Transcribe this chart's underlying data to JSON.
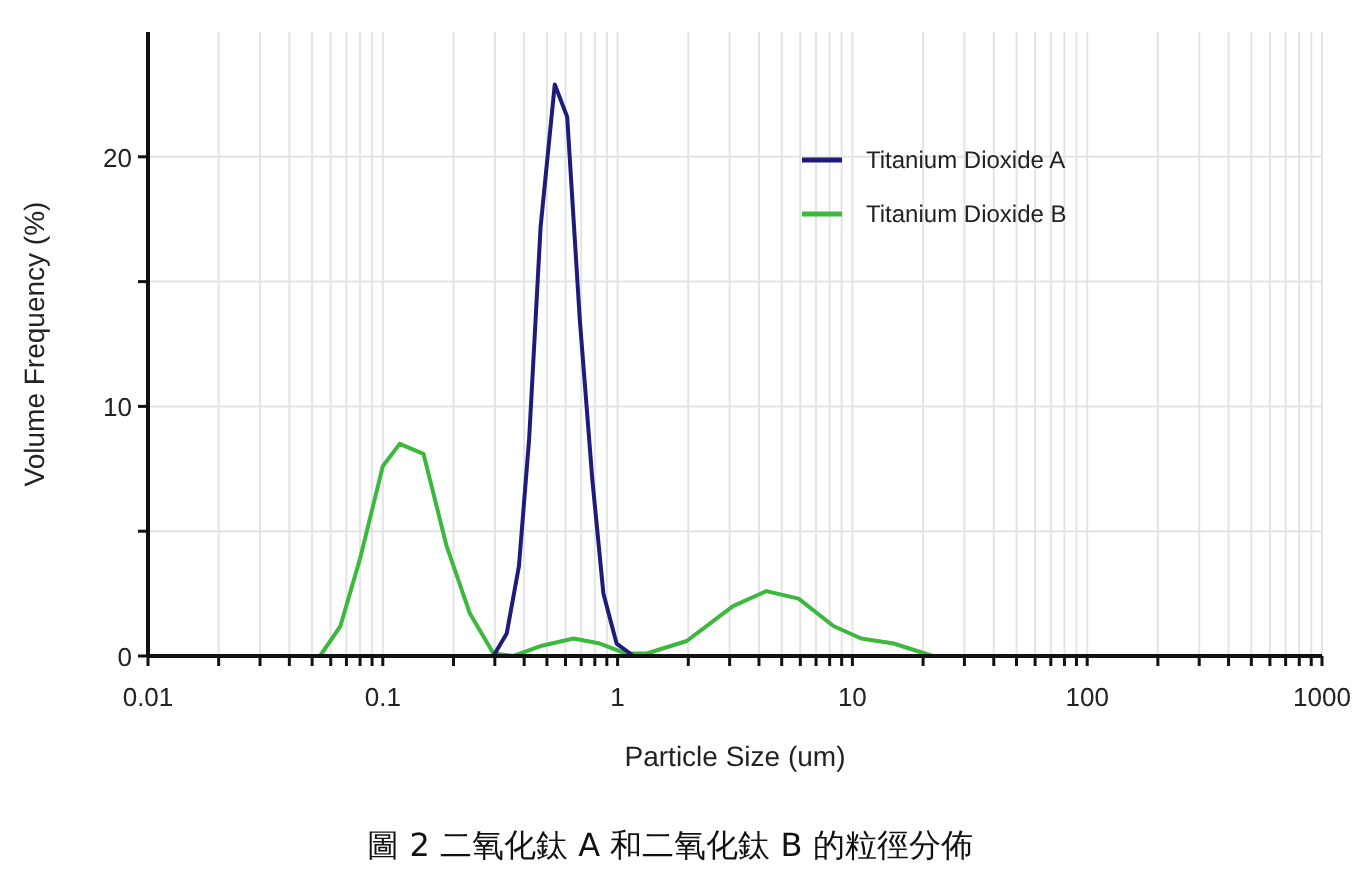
{
  "chart_data": {
    "type": "line",
    "title": "圖 2 二氧化鈦 A 和二氧化鈦 B 的粒徑分佈",
    "xlabel": "Particle Size (um)",
    "ylabel": "Volume Frequency (%)",
    "log": "x",
    "xlim": [
      0.01,
      1000
    ],
    "ylim": [
      0,
      25
    ],
    "xticks": [
      0.01,
      {
        "value": 0.02,
        "label": null
      },
      {
        "value": 0.03,
        "label": null
      },
      {
        "value": 0.04,
        "label": null
      },
      {
        "value": 0.05,
        "label": null
      },
      {
        "value": 0.06,
        "label": null
      },
      {
        "value": 0.07,
        "label": null
      },
      {
        "value": 0.08,
        "label": null
      },
      {
        "value": 0.09,
        "label": null
      },
      0.1,
      {
        "value": 0.2,
        "label": null
      },
      {
        "value": 0.3,
        "label": null
      },
      {
        "value": 0.4,
        "label": null
      },
      {
        "value": 0.5,
        "label": null
      },
      {
        "value": 0.6,
        "label": null
      },
      {
        "value": 0.7,
        "label": null
      },
      {
        "value": 0.8,
        "label": null
      },
      {
        "value": 0.9,
        "label": null
      },
      1,
      {
        "value": 2,
        "label": null
      },
      {
        "value": 3,
        "label": null
      },
      {
        "value": 4,
        "label": null
      },
      {
        "value": 5,
        "label": null
      },
      {
        "value": 6,
        "label": null
      },
      {
        "value": 7,
        "label": null
      },
      {
        "value": 8,
        "label": null
      },
      {
        "value": 9,
        "label": null
      },
      10,
      {
        "value": 20,
        "label": null
      },
      {
        "value": 30,
        "label": null
      },
      {
        "value": 40,
        "label": null
      },
      {
        "value": 50,
        "label": null
      },
      {
        "value": 60,
        "label": null
      },
      {
        "value": 70,
        "label": null
      },
      {
        "value": 80,
        "label": null
      },
      {
        "value": 90,
        "label": null
      },
      100,
      {
        "value": 200,
        "label": null
      },
      {
        "value": 300,
        "label": null
      },
      {
        "value": 400,
        "label": null
      },
      {
        "value": 500,
        "label": null
      },
      {
        "value": 600,
        "label": null
      },
      {
        "value": 700,
        "label": null
      },
      {
        "value": 800,
        "label": null
      },
      {
        "value": 900,
        "label": null
      },
      1000
    ],
    "yticks": [
      0,
      {
        "value": 5,
        "label": null
      },
      10,
      {
        "value": 15,
        "label": null
      },
      20
    ],
    "grid": true,
    "legend": "top right",
    "marker": "none",
    "line_style": "solid",
    "series": [
      {
        "name": "Titanium Dioxide B",
        "color": "#3cb83c",
        "x": [
          0.022,
          0.054,
          0.066,
          0.08,
          0.1,
          0.118,
          0.149,
          0.187,
          0.235,
          0.296,
          0.36,
          0.47,
          0.65,
          0.84,
          1.09,
          1.33,
          1.97,
          3.1,
          4.3,
          5.9,
          8.3,
          10.9,
          15,
          22,
          1000
        ],
        "values": [
          0,
          0,
          1.2,
          3.9,
          7.6,
          8.5,
          8.1,
          4.4,
          1.7,
          0.1,
          0,
          0.4,
          0.7,
          0.5,
          0.1,
          0.1,
          0.6,
          2.0,
          2.6,
          2.3,
          1.2,
          0.7,
          0.5,
          0,
          0
        ]
      },
      {
        "name": "Titanium Dioxide A",
        "color": "#1e1b7a",
        "x": [
          0.022,
          0.296,
          0.337,
          0.38,
          0.42,
          0.47,
          0.54,
          0.61,
          0.69,
          0.78,
          0.87,
          0.99,
          1.17,
          1000
        ],
        "values": [
          0,
          0,
          0.9,
          3.6,
          8.7,
          17.2,
          22.9,
          21.6,
          13.5,
          7.1,
          2.5,
          0.5,
          0,
          0
        ]
      }
    ]
  }
}
